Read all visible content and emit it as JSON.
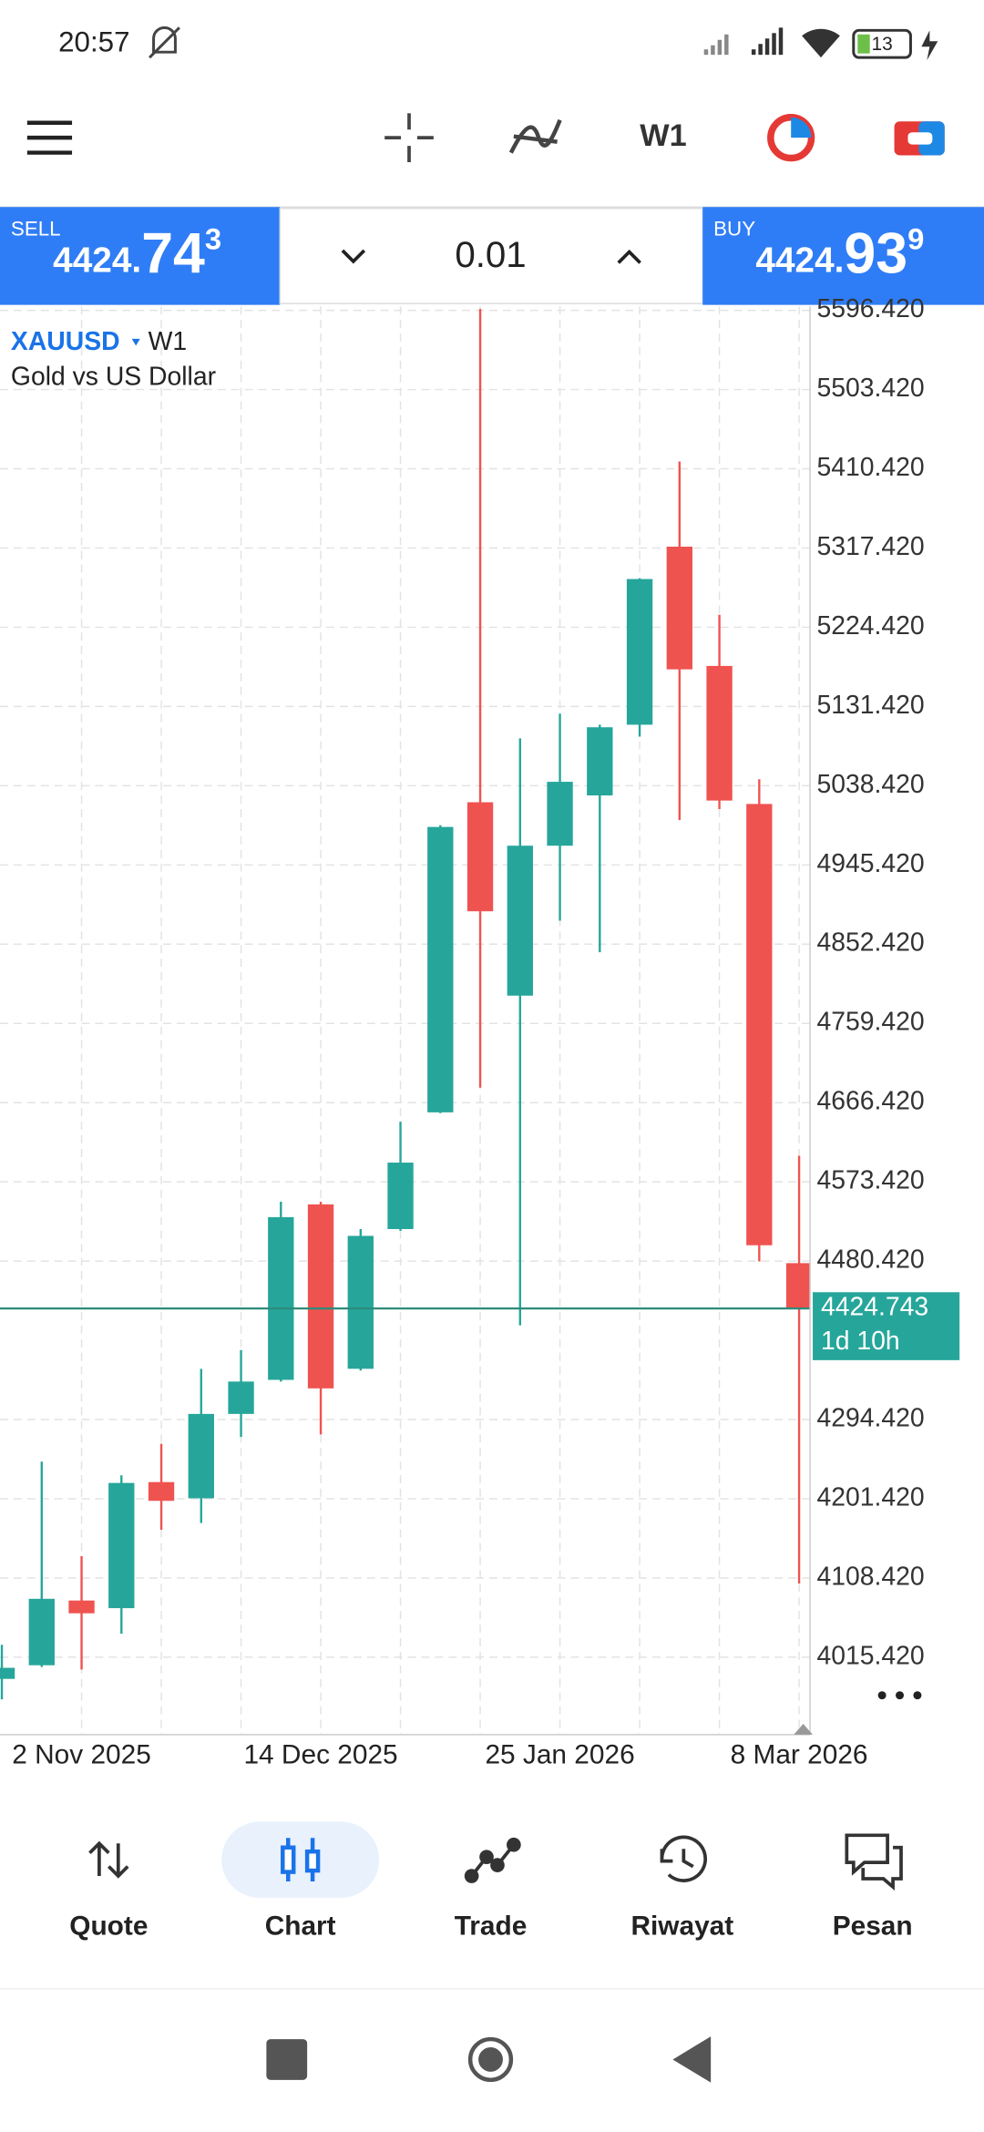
{
  "status_bar": {
    "time": "20:57",
    "battery": "13"
  },
  "toolbar": {
    "timeframe": "W1"
  },
  "trade_panel": {
    "sell": {
      "label": "SELL",
      "price_prefix": "4424.",
      "price_main": "74",
      "price_sup": "3"
    },
    "volume": "0.01",
    "buy": {
      "label": "BUY",
      "price_prefix": "4424.",
      "price_main": "93",
      "price_sup": "9"
    }
  },
  "chart_data": {
    "type": "candlestick",
    "symbol": "XAUUSD",
    "timeframe": "W1",
    "subtitle": "Gold vs US Dollar",
    "categories": [
      null,
      null,
      "2 Nov 2025",
      null,
      null,
      null,
      null,
      null,
      "14 Dec 2025",
      null,
      null,
      null,
      null,
      null,
      "25 Jan 2026",
      null,
      null,
      null,
      null,
      null,
      "8 Mar 2026"
    ],
    "open": [
      3990,
      4006,
      4082,
      4073,
      4221,
      4202,
      4301,
      4341,
      4547,
      4354,
      4518,
      4655,
      5019,
      4792,
      4968,
      5027,
      5110,
      5319,
      5179,
      5017,
      4478
    ],
    "high": [
      4030,
      4245,
      4134,
      4229,
      4266,
      4354,
      4376,
      4550,
      4550,
      4518,
      4644,
      4992,
      5598,
      5094,
      5123,
      5110,
      5282,
      5419,
      5239,
      5046,
      4604
    ],
    "low": [
      3966,
      4004,
      4001,
      4043,
      4165,
      4173,
      4274,
      4339,
      4277,
      4352,
      4516,
      4654,
      4684,
      4405,
      4880,
      4843,
      5096,
      4998,
      5011,
      4480,
      4102
    ],
    "close": [
      4003,
      4084,
      4067,
      4220,
      4199,
      4301,
      4339,
      4532,
      4331,
      4510,
      4596,
      4990,
      4891,
      4968,
      5043,
      5107,
      5281,
      5175,
      5021,
      4499,
      4424.743
    ],
    "up_color": "#26a69a",
    "down_color": "#ef5350",
    "ylim": [
      3924.5,
      5601.2
    ],
    "yticks": [
      {
        "value": 4015.42,
        "label": "4015.420"
      },
      {
        "value": 4108.42,
        "label": "4108.420"
      },
      {
        "value": 4201.42,
        "label": "4201.420"
      },
      {
        "value": 4294.42,
        "label": "4294.420"
      },
      {
        "value": 4480.42,
        "label": "4480.420"
      },
      {
        "value": 4573.42,
        "label": "4573.420"
      },
      {
        "value": 4666.42,
        "label": "4666.420"
      },
      {
        "value": 4759.42,
        "label": "4759.420"
      },
      {
        "value": 4852.42,
        "label": "4852.420"
      },
      {
        "value": 4945.42,
        "label": "4945.420"
      },
      {
        "value": 5038.42,
        "label": "5038.420"
      },
      {
        "value": 5131.42,
        "label": "5131.420"
      },
      {
        "value": 5224.42,
        "label": "5224.420"
      },
      {
        "value": 5317.42,
        "label": "5317.420"
      },
      {
        "value": 5410.42,
        "label": "5410.420"
      },
      {
        "value": 5503.42,
        "label": "5503.420"
      },
      {
        "value": 5596.42,
        "label": "5596.420"
      }
    ],
    "grid": true,
    "current_price": {
      "value": 4424.743,
      "countdown": "1d 10h"
    }
  },
  "bottom_nav": {
    "items": [
      "Quote",
      "Chart",
      "Trade",
      "Riwayat",
      "Pesan"
    ],
    "active": 1
  }
}
